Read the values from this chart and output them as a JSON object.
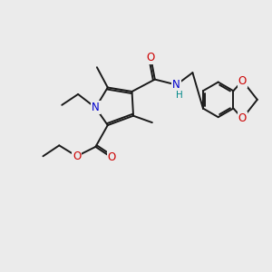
{
  "bg_color": "#ebebeb",
  "atom_colors": {
    "C": "#1a1a1a",
    "N": "#0000cc",
    "O": "#cc0000",
    "H": "#008888"
  },
  "bond_color": "#1a1a1a",
  "bond_width": 1.4,
  "font_size_atoms": 8.5,
  "font_size_small": 7.0
}
